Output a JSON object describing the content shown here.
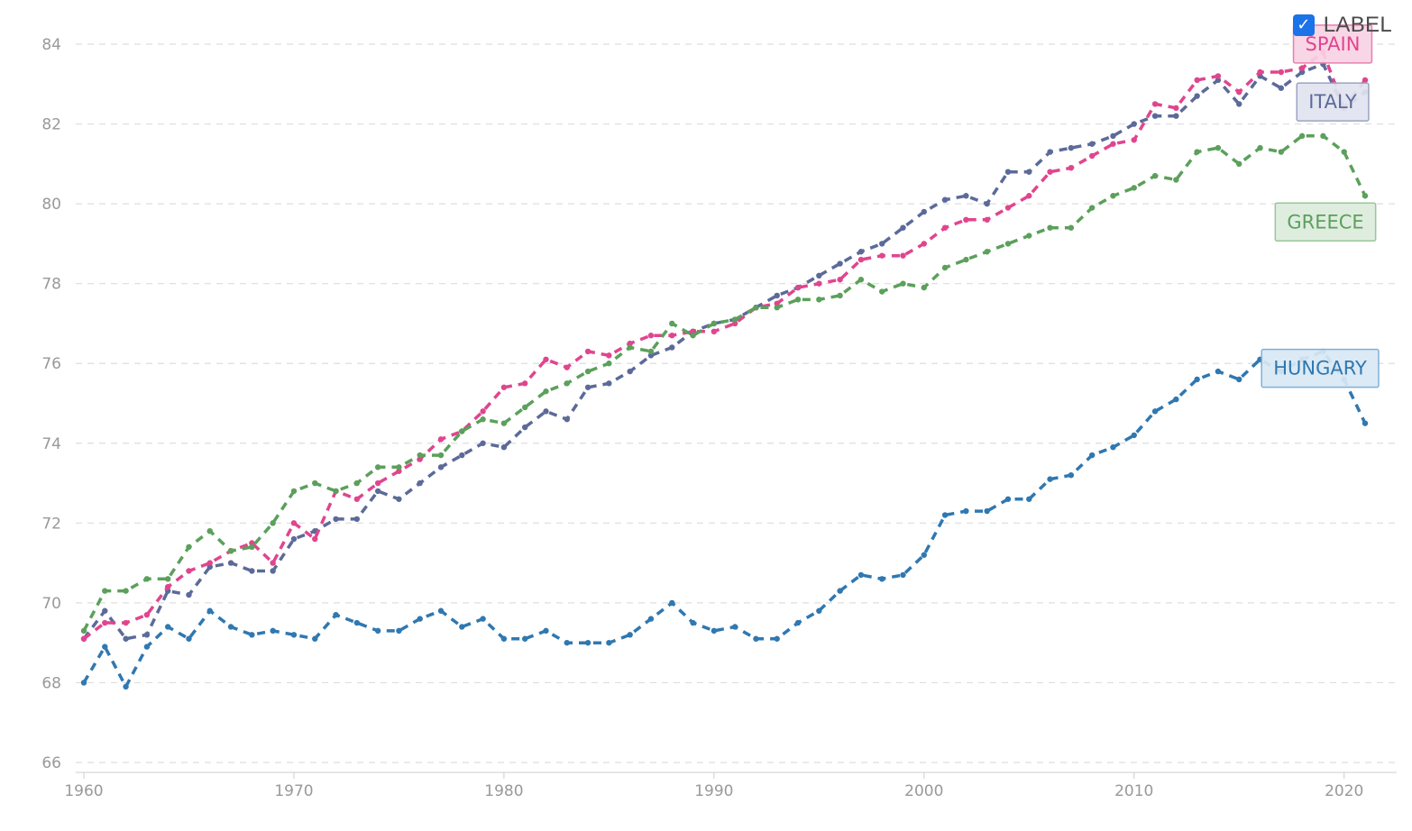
{
  "controls": {
    "label_toggle": {
      "text": "LABEL",
      "checked": true,
      "check_glyph": "✓"
    }
  },
  "chart_data": {
    "type": "line",
    "title": "",
    "xlabel": "",
    "ylabel": "",
    "xlim": [
      1960,
      2021
    ],
    "ylim": [
      66,
      84
    ],
    "y_ticks": [
      66,
      68,
      70,
      72,
      74,
      76,
      78,
      80,
      82,
      84
    ],
    "x_ticks": [
      1960,
      1970,
      1980,
      1990,
      2000,
      2010,
      2020
    ],
    "grid": true,
    "x": [
      1960,
      1961,
      1962,
      1963,
      1964,
      1965,
      1966,
      1967,
      1968,
      1969,
      1970,
      1971,
      1972,
      1973,
      1974,
      1975,
      1976,
      1977,
      1978,
      1979,
      1980,
      1981,
      1982,
      1983,
      1984,
      1985,
      1986,
      1987,
      1988,
      1989,
      1990,
      1991,
      1992,
      1993,
      1994,
      1995,
      1996,
      1997,
      1998,
      1999,
      2000,
      2001,
      2002,
      2003,
      2004,
      2005,
      2006,
      2007,
      2008,
      2009,
      2010,
      2011,
      2012,
      2013,
      2014,
      2015,
      2016,
      2017,
      2018,
      2019,
      2020,
      2021
    ],
    "series": [
      {
        "name": "HUNGARY",
        "color": "#2f78b1",
        "values": [
          68.0,
          68.9,
          67.9,
          68.9,
          69.4,
          69.1,
          69.8,
          69.4,
          69.2,
          69.3,
          69.2,
          69.1,
          69.7,
          69.5,
          69.3,
          69.3,
          69.6,
          69.8,
          69.4,
          69.6,
          69.1,
          69.1,
          69.3,
          69.0,
          69.0,
          69.0,
          69.2,
          69.6,
          70.0,
          69.5,
          69.3,
          69.4,
          69.1,
          69.1,
          69.5,
          69.8,
          70.3,
          70.7,
          70.6,
          70.7,
          71.2,
          72.2,
          72.3,
          72.3,
          72.6,
          72.6,
          73.1,
          73.2,
          73.7,
          73.9,
          74.2,
          74.8,
          75.1,
          75.6,
          75.8,
          75.6,
          76.1,
          75.8,
          76.1,
          76.3,
          75.6,
          74.5
        ]
      },
      {
        "name": "ITALY",
        "color": "#5b6a99",
        "values": [
          69.1,
          69.8,
          69.1,
          69.2,
          70.3,
          70.2,
          70.9,
          71.0,
          70.8,
          70.8,
          71.6,
          71.8,
          72.1,
          72.1,
          72.8,
          72.6,
          73.0,
          73.4,
          73.7,
          74.0,
          73.9,
          74.4,
          74.8,
          74.6,
          75.4,
          75.5,
          75.8,
          76.2,
          76.4,
          76.8,
          77.0,
          77.1,
          77.4,
          77.7,
          77.9,
          78.2,
          78.5,
          78.8,
          79.0,
          79.4,
          79.8,
          80.1,
          80.2,
          80.0,
          80.8,
          80.8,
          81.3,
          81.4,
          81.5,
          81.7,
          82.0,
          82.2,
          82.2,
          82.7,
          83.1,
          82.5,
          83.2,
          82.9,
          83.3,
          83.5,
          82.4,
          82.8
        ]
      },
      {
        "name": "SPAIN",
        "color": "#e0458e",
        "values": [
          69.1,
          69.5,
          69.5,
          69.7,
          70.4,
          70.8,
          71.0,
          71.3,
          71.5,
          71.0,
          72.0,
          71.6,
          72.8,
          72.6,
          73.0,
          73.3,
          73.6,
          74.1,
          74.3,
          74.8,
          75.4,
          75.5,
          76.1,
          75.9,
          76.3,
          76.2,
          76.5,
          76.7,
          76.7,
          76.8,
          76.8,
          77.0,
          77.4,
          77.5,
          77.9,
          78.0,
          78.1,
          78.6,
          78.7,
          78.7,
          79.0,
          79.4,
          79.6,
          79.6,
          79.9,
          80.2,
          80.8,
          80.9,
          81.2,
          81.5,
          81.6,
          82.5,
          82.4,
          83.1,
          83.2,
          82.8,
          83.3,
          83.3,
          83.4,
          83.8,
          82.4,
          83.1
        ]
      },
      {
        "name": "GREECE",
        "color": "#5ba05b",
        "values": [
          69.3,
          70.3,
          70.3,
          70.6,
          70.6,
          71.4,
          71.8,
          71.3,
          71.4,
          72.0,
          72.8,
          73.0,
          72.8,
          73.0,
          73.4,
          73.4,
          73.7,
          73.7,
          74.3,
          74.6,
          74.5,
          74.9,
          75.3,
          75.5,
          75.8,
          76.0,
          76.4,
          76.3,
          77.0,
          76.7,
          77.0,
          77.1,
          77.4,
          77.4,
          77.6,
          77.6,
          77.7,
          78.1,
          77.8,
          78.0,
          77.9,
          78.4,
          78.6,
          78.8,
          79.0,
          79.2,
          79.4,
          79.4,
          79.9,
          80.2,
          80.4,
          80.7,
          80.6,
          81.3,
          81.4,
          81.0,
          81.4,
          81.3,
          81.7,
          81.7,
          81.3,
          80.2
        ]
      }
    ],
    "end_labels": [
      {
        "series": "SPAIN",
        "text": "SPAIN",
        "fill": "#f9d3e4",
        "stroke": "#e77fb0",
        "text_color": "#e0458e"
      },
      {
        "series": "ITALY",
        "text": "ITALY",
        "fill": "#e1e4f0",
        "stroke": "#9ba3c3",
        "text_color": "#5b6a99"
      },
      {
        "series": "GREECE",
        "text": "GREECE",
        "fill": "#dcecdc",
        "stroke": "#98c798",
        "text_color": "#5ba05b"
      },
      {
        "series": "HUNGARY",
        "text": "HUNGARY",
        "fill": "#d9e8f4",
        "stroke": "#7fb0d6",
        "text_color": "#2f78b1"
      }
    ],
    "colors": {
      "grid": "#dddddd",
      "tick_text": "#999999",
      "axis": "#cccccc"
    }
  }
}
